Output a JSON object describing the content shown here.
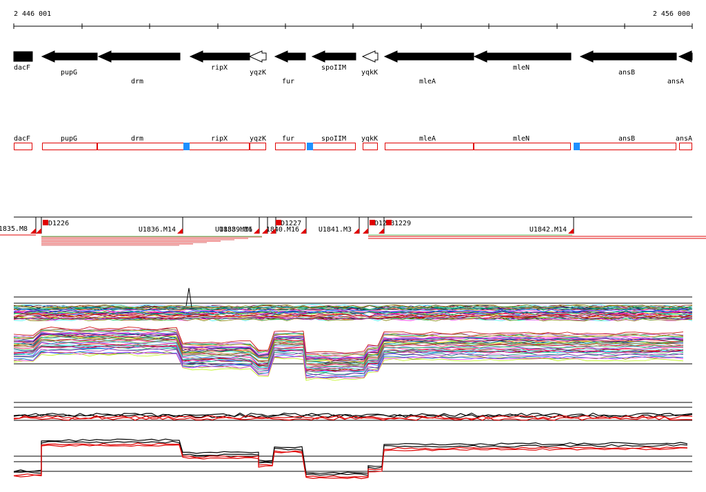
{
  "coords": {
    "start_label": "2 446 001",
    "end_label": "2 456 000"
  },
  "genes": [
    {
      "name": "dacF",
      "strand": "-",
      "style": "solid"
    },
    {
      "name": "pupG",
      "strand": "-",
      "style": "solid"
    },
    {
      "name": "drm",
      "strand": "-",
      "style": "solid"
    },
    {
      "name": "ripX",
      "strand": "-",
      "style": "solid"
    },
    {
      "name": "yqzK",
      "strand": "-",
      "style": "outline"
    },
    {
      "name": "fur",
      "strand": "-",
      "style": "solid"
    },
    {
      "name": "spoIIM",
      "strand": "-",
      "style": "solid"
    },
    {
      "name": "yqkK",
      "strand": "-",
      "style": "outline"
    },
    {
      "name": "mleA",
      "strand": "-",
      "style": "solid"
    },
    {
      "name": "mleN",
      "strand": "-",
      "style": "solid"
    },
    {
      "name": "ansB",
      "strand": "-",
      "style": "solid"
    },
    {
      "name": "ansA",
      "strand": "-",
      "style": "solid"
    }
  ],
  "operon_genes": [
    "dacF",
    "pupG",
    "drm",
    "ripX",
    "yqzK",
    "fur",
    "spoIIM",
    "yqkK",
    "mleA",
    "mleN",
    "ansB",
    "ansA"
  ],
  "segments": [
    {
      "label": "1835.M8"
    },
    {
      "label": "D1226"
    },
    {
      "label": "U1836.M14"
    },
    {
      "label": "U1838.M16"
    },
    {
      "label": "U1839.M1"
    },
    {
      "label": "1840.M16"
    },
    {
      "label": "D1227"
    },
    {
      "label": "U1841.M3"
    },
    {
      "label": "D12"
    },
    {
      "label": "B1229"
    },
    {
      "label": "U1842.M14"
    }
  ],
  "colors": {
    "gene_fill": "#000000",
    "operon_outline": "#e00000",
    "promoter": "#1e90ff",
    "segment_mark": "#e00000",
    "summary_line": "#e00000"
  }
}
